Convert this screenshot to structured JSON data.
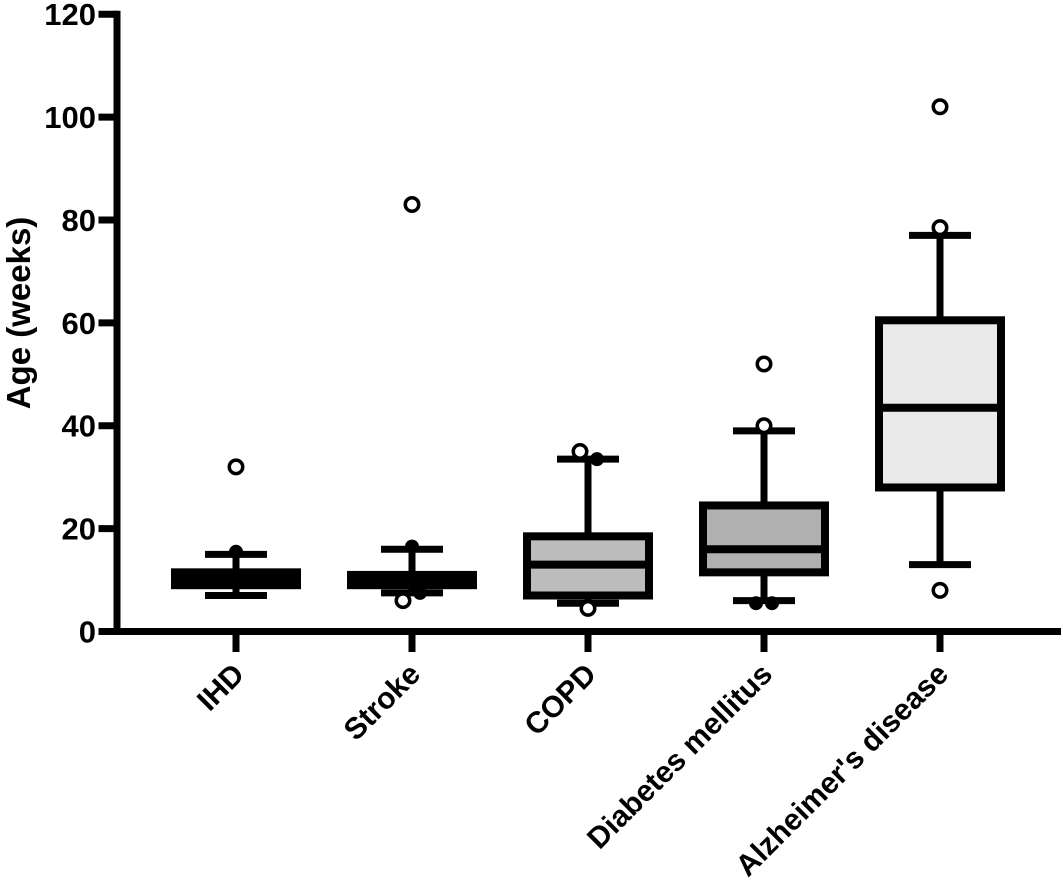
{
  "figure": {
    "background": "#ffffff",
    "axis_color": "#000000"
  },
  "chart_data": {
    "type": "box",
    "title": "",
    "xlabel": "",
    "ylabel": "Age (weeks)",
    "ylim": [
      0,
      120
    ],
    "yticks": [
      0,
      20,
      40,
      60,
      80,
      100,
      120
    ],
    "grid": false,
    "legend": false,
    "categories": [
      "IHD",
      "Stroke",
      "COPD",
      "Diabetes mellitus",
      "Alzheimer's disease"
    ],
    "series": [
      {
        "label": "IHD",
        "fill": "#000000",
        "whisker_low": 7,
        "q1": 9,
        "median": 10.5,
        "q3": 11.5,
        "whisker_high": 15,
        "points": [
          {
            "value": 32,
            "marker": "open",
            "dx": 0
          },
          {
            "value": 15.5,
            "marker": "filled",
            "dx": 0
          }
        ]
      },
      {
        "label": "Stroke",
        "fill": "#000000",
        "whisker_low": 7.5,
        "q1": 9,
        "median": 10,
        "q3": 11,
        "whisker_high": 16,
        "points": [
          {
            "value": 83,
            "marker": "open",
            "dx": 0
          },
          {
            "value": 16.5,
            "marker": "filled",
            "dx": 0
          },
          {
            "value": 7.5,
            "marker": "filled",
            "dx": 8
          },
          {
            "value": 6,
            "marker": "open",
            "dx": -9
          }
        ]
      },
      {
        "label": "COPD",
        "fill": "#bcbcbc",
        "whisker_low": 5.5,
        "q1": 7,
        "median": 13,
        "q3": 18.5,
        "whisker_high": 33.5,
        "points": [
          {
            "value": 35,
            "marker": "open",
            "dx": -8
          },
          {
            "value": 33.5,
            "marker": "filled",
            "dx": 9
          },
          {
            "value": 4.5,
            "marker": "open",
            "dx": 0
          }
        ]
      },
      {
        "label": "Diabetes mellitus",
        "fill": "#b0b0b0",
        "whisker_low": 6,
        "q1": 11.5,
        "median": 16,
        "q3": 24.5,
        "whisker_high": 39,
        "points": [
          {
            "value": 52,
            "marker": "open",
            "dx": 0
          },
          {
            "value": 40,
            "marker": "open",
            "dx": 0
          },
          {
            "value": 5.5,
            "marker": "filled",
            "dx": -8
          },
          {
            "value": 5.5,
            "marker": "filled",
            "dx": 8
          }
        ]
      },
      {
        "label": "Alzheimer's disease",
        "fill": "#e9e9e9",
        "whisker_low": 13,
        "q1": 28,
        "median": 43.5,
        "q3": 60.5,
        "whisker_high": 77,
        "points": [
          {
            "value": 102,
            "marker": "open",
            "dx": 0
          },
          {
            "value": 78.5,
            "marker": "open",
            "dx": 0
          },
          {
            "value": 8,
            "marker": "open",
            "dx": 0
          }
        ]
      }
    ]
  }
}
